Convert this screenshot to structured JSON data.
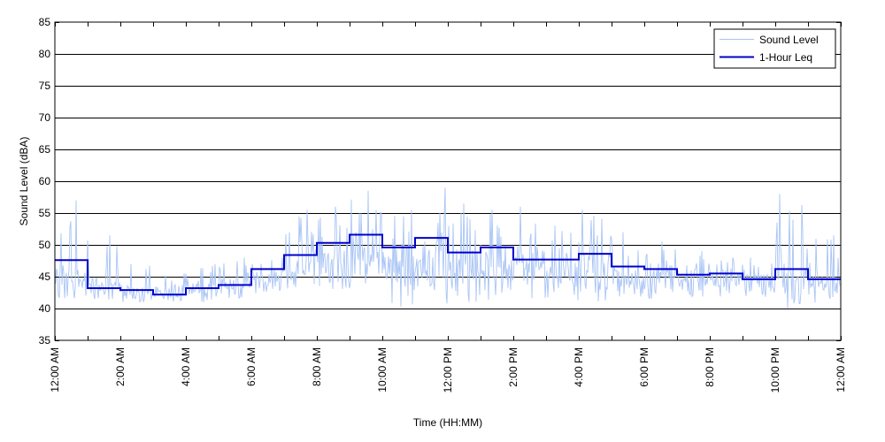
{
  "chart_data": {
    "type": "line",
    "xlabel": "Time (HH:MM)",
    "ylabel": "Sound Level (dBA)",
    "xlim": [
      "12:00 AM",
      "12:00 AM (next day)"
    ],
    "x_ticks": [
      "12:00 AM",
      "2:00 AM",
      "4:00 AM",
      "6:00 AM",
      "8:00 AM",
      "10:00 AM",
      "12:00 PM",
      "2:00 PM",
      "4:00 PM",
      "6:00 PM",
      "8:00 PM",
      "10:00 PM",
      "12:00 AM"
    ],
    "ylim": [
      35,
      85
    ],
    "y_ticks": [
      35,
      40,
      45,
      50,
      55,
      60,
      65,
      70,
      75,
      80,
      85
    ],
    "grid": "horizontal",
    "legend_position": "top-right",
    "colors": {
      "sound_level": "#a9c4f5",
      "leq": "#0000cc",
      "grid": "#000000"
    },
    "series": [
      {
        "name": "Sound Level",
        "style": "thin-noisy",
        "hours": [
          "12:00 AM",
          "1:00 AM",
          "2:00 AM",
          "3:00 AM",
          "4:00 AM",
          "5:00 AM",
          "6:00 AM",
          "7:00 AM",
          "8:00 AM",
          "9:00 AM",
          "10:00 AM",
          "11:00 AM",
          "12:00 PM",
          "1:00 PM",
          "2:00 PM",
          "3:00 PM",
          "4:00 PM",
          "5:00 PM",
          "6:00 PM",
          "7:00 PM",
          "8:00 PM",
          "9:00 PM",
          "10:00 PM",
          "11:00 PM"
        ],
        "hourly_min": [
          41.5,
          41,
          41,
          41,
          41,
          41.5,
          42,
          43,
          43,
          43,
          40,
          40,
          41,
          41,
          41,
          41,
          41,
          41,
          41,
          41.5,
          41.5,
          41.5,
          40,
          40.5
        ],
        "hourly_median": [
          43,
          42.5,
          42,
          41.8,
          42.5,
          43,
          44,
          45,
          46,
          47,
          45,
          45,
          45,
          45,
          45,
          44.5,
          45,
          44,
          44,
          44,
          44,
          43.5,
          42.5,
          42.5
        ],
        "hourly_max": [
          57,
          51.5,
          47,
          45.5,
          47,
          48,
          48,
          55.5,
          56,
          58.5,
          55.5,
          59,
          56.5,
          55.5,
          56,
          53,
          55.5,
          52,
          50.5,
          49,
          48,
          48,
          58,
          51.5
        ]
      },
      {
        "name": "1-Hour Leq",
        "style": "step",
        "hours": [
          "12:00 AM",
          "1:00 AM",
          "2:00 AM",
          "3:00 AM",
          "4:00 AM",
          "5:00 AM",
          "6:00 AM",
          "7:00 AM",
          "8:00 AM",
          "9:00 AM",
          "10:00 AM",
          "11:00 AM",
          "12:00 PM",
          "1:00 PM",
          "2:00 PM",
          "3:00 PM",
          "4:00 PM",
          "5:00 PM",
          "6:00 PM",
          "7:00 PM",
          "8:00 PM",
          "9:00 PM",
          "10:00 PM",
          "11:00 PM"
        ],
        "values": [
          47.6,
          43.2,
          42.9,
          42.2,
          43.2,
          43.7,
          46.2,
          48.4,
          50.3,
          51.6,
          49.6,
          51.1,
          48.8,
          49.6,
          47.7,
          47.7,
          48.6,
          46.6,
          46.2,
          45.3,
          45.5,
          44.6,
          46.2,
          44.6
        ]
      }
    ]
  }
}
